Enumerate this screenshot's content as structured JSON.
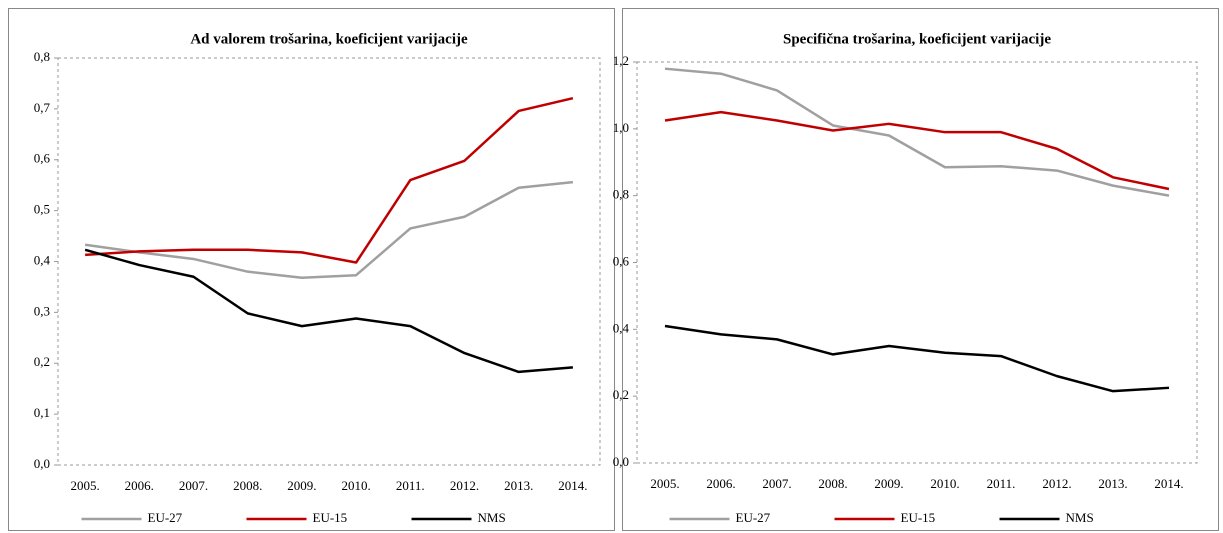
{
  "chart_data": [
    {
      "type": "line",
      "title": "Ad valorem trošarina, koeficijent varijacije",
      "categories": [
        "2005.",
        "2006.",
        "2007.",
        "2008.",
        "2009.",
        "2010.",
        "2011.",
        "2012.",
        "2013.",
        "2014."
      ],
      "series": [
        {
          "name": "EU-27",
          "color": "#a0a0a0",
          "values": [
            0.433,
            0.418,
            0.405,
            0.38,
            0.368,
            0.373,
            0.465,
            0.488,
            0.545,
            0.556
          ]
        },
        {
          "name": "EU-15",
          "color": "#c00000",
          "values": [
            0.413,
            0.42,
            0.423,
            0.423,
            0.418,
            0.398,
            0.56,
            0.598,
            0.696,
            0.721
          ]
        },
        {
          "name": "NMS",
          "color": "#000000",
          "values": [
            0.423,
            0.393,
            0.37,
            0.298,
            0.273,
            0.288,
            0.273,
            0.22,
            0.183,
            0.192
          ]
        }
      ],
      "ylim": [
        0,
        0.8
      ],
      "yticks": [
        {
          "value": 0,
          "label": "0,0"
        },
        {
          "value": 0.1,
          "label": "0,1"
        },
        {
          "value": 0.2,
          "label": "0,2"
        },
        {
          "value": 0.3,
          "label": "0,3"
        },
        {
          "value": 0.4,
          "label": "0,4"
        },
        {
          "value": 0.5,
          "label": "0,5"
        },
        {
          "value": 0.6,
          "label": "0,6"
        },
        {
          "value": 0.7,
          "label": "0,7"
        },
        {
          "value": 0.8,
          "label": "0,8"
        }
      ],
      "legend": "bottom"
    },
    {
      "type": "line",
      "title": "Specifična trošarina, koeficijent varijacije",
      "categories": [
        "2005.",
        "2006.",
        "2007.",
        "2008.",
        "2009.",
        "2010.",
        "2011.",
        "2012.",
        "2013.",
        "2014."
      ],
      "series": [
        {
          "name": "EU-27",
          "color": "#a0a0a0",
          "values": [
            1.18,
            1.165,
            1.115,
            1.01,
            0.98,
            0.885,
            0.888,
            0.875,
            0.83,
            0.8
          ]
        },
        {
          "name": "EU-15",
          "color": "#c00000",
          "values": [
            1.025,
            1.05,
            1.025,
            0.995,
            1.015,
            0.99,
            0.99,
            0.94,
            0.855,
            0.82
          ]
        },
        {
          "name": "NMS",
          "color": "#000000",
          "values": [
            0.41,
            0.385,
            0.37,
            0.325,
            0.35,
            0.33,
            0.32,
            0.26,
            0.215,
            0.225
          ]
        }
      ],
      "ylim": [
        0,
        1.2
      ],
      "yticks": [
        {
          "value": 0,
          "label": "0,0"
        },
        {
          "value": 0.2,
          "label": "0,2"
        },
        {
          "value": 0.4,
          "label": "0,4"
        },
        {
          "value": 0.6,
          "label": "0,6"
        },
        {
          "value": 0.8,
          "label": "0,8"
        },
        {
          "value": 1.0,
          "label": "1,0"
        },
        {
          "value": 1.2,
          "label": "1,2"
        }
      ],
      "legend": "bottom"
    }
  ]
}
